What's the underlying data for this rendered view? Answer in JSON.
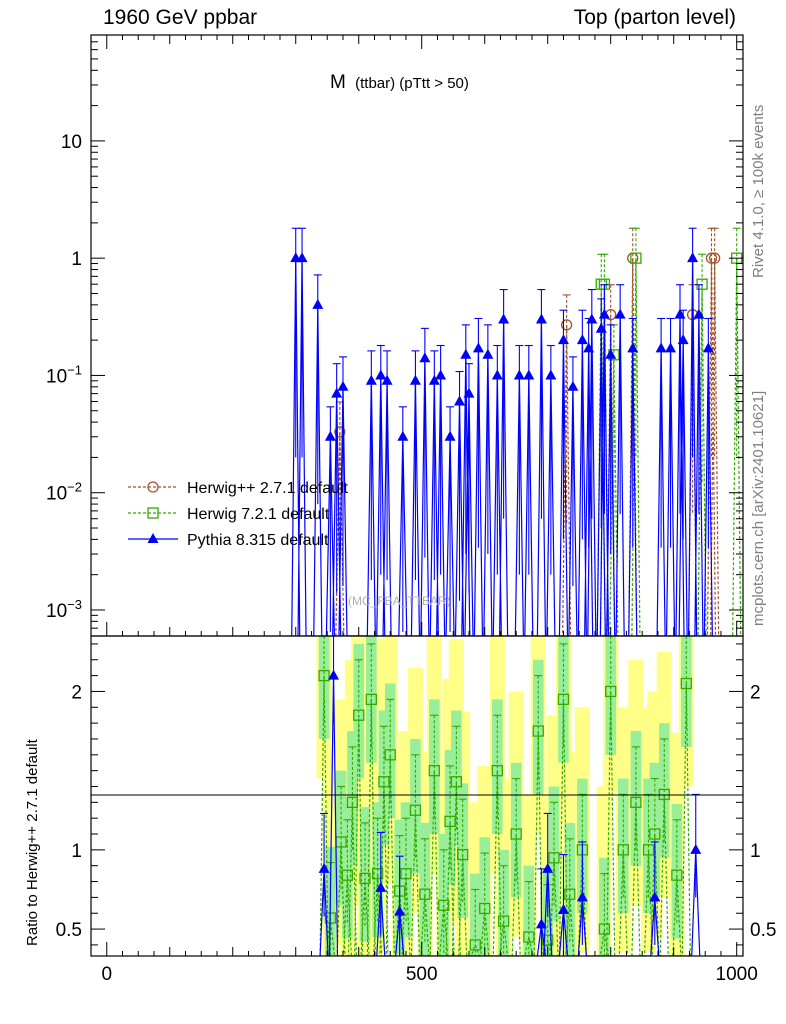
{
  "header": {
    "left": "1960 GeV ppbar",
    "right": "Top (parton level)"
  },
  "side_labels": {
    "rivet": "Rivet 4.1.0, ≥ 100k events",
    "mcplots": "mcplots.cern.ch [arXiv:2401.10621]"
  },
  "chart_data": [
    {
      "type": "line",
      "panel": "main",
      "title_main": "M",
      "title_sub": "(ttbar) (pTtt > 50)",
      "watermark": "(MC_FBA_TTBAR)",
      "xlabel": "",
      "ylabel": "",
      "xlim": [
        -25,
        1010
      ],
      "ylim": [
        0.0006,
        80
      ],
      "yscale": "log",
      "ytick_labels": [
        "10",
        "1",
        "10−1",
        "10−2",
        "10−3"
      ],
      "legend": {
        "placement": "middle-left",
        "entries": [
          "Herwig++ 2.7.1 default",
          "Herwig 7.2.1 default",
          "Pythia 8.315 default"
        ]
      },
      "series": [
        {
          "name": "Herwig++ 2.7.1 default",
          "color": "#a0522d",
          "marker": "open-circle",
          "x": [
            370,
            730,
            800,
            835,
            930,
            960,
            965
          ],
          "y": [
            0.033,
            0.27,
            0.33,
            1.0,
            0.33,
            1.0,
            1.0
          ]
        },
        {
          "name": "Herwig 7.2.1 default",
          "color": "#33aa00",
          "marker": "open-square",
          "x": [
            785,
            790,
            805,
            840,
            945,
            1000
          ],
          "y": [
            0.6,
            0.6,
            0.15,
            1.0,
            0.6,
            1.0
          ]
        },
        {
          "name": "Pythia 8.315 default",
          "color": "#0000ff",
          "marker": "filled-triangle",
          "x": [
            300,
            310,
            335,
            355,
            365,
            375,
            420,
            435,
            445,
            470,
            490,
            505,
            520,
            530,
            545,
            560,
            570,
            575,
            590,
            605,
            620,
            630,
            655,
            670,
            690,
            705,
            725,
            740,
            755,
            765,
            770,
            785,
            790,
            800,
            815,
            835,
            880,
            895,
            910,
            915,
            930,
            940,
            955
          ],
          "y": [
            1.0,
            1.0,
            0.4,
            0.03,
            0.07,
            0.08,
            0.09,
            0.1,
            0.09,
            0.03,
            0.09,
            0.14,
            0.09,
            0.1,
            0.03,
            0.06,
            0.15,
            0.07,
            0.17,
            0.15,
            0.1,
            0.3,
            0.1,
            0.1,
            0.3,
            0.1,
            0.2,
            0.08,
            0.2,
            0.17,
            0.3,
            0.25,
            0.33,
            0.15,
            0.33,
            0.17,
            0.17,
            0.17,
            0.33,
            0.2,
            1.0,
            0.33,
            0.17
          ]
        }
      ]
    },
    {
      "type": "line",
      "panel": "ratio",
      "ylabel": "Ratio to Herwig++ 2.7.1 default",
      "xlim": [
        -25,
        1010
      ],
      "ylim": [
        0.33,
        2.35
      ],
      "yticks": [
        0.5,
        1,
        2
      ],
      "ytick_labels": [
        "0.5",
        "1",
        "2"
      ],
      "xticks": [
        0,
        500,
        1000
      ],
      "xtick_labels": [
        "0",
        "500",
        "1000"
      ],
      "series": [
        {
          "name": "Herwig 7.2.1 default",
          "color": "#33aa00",
          "marker": "open-square",
          "x": [
            345,
            355,
            372,
            382,
            390,
            400,
            410,
            420,
            430,
            440,
            450,
            465,
            475,
            490,
            505,
            520,
            535,
            545,
            555,
            565,
            585,
            600,
            620,
            630,
            650,
            670,
            685,
            700,
            710,
            725,
            735,
            755,
            790,
            800,
            820,
            840,
            860,
            870,
            885,
            905,
            920
          ],
          "y": [
            2.1,
            0.57,
            1.05,
            0.84,
            1.3,
            1.85,
            0.82,
            1.95,
            0.85,
            1.43,
            1.6,
            0.74,
            0.85,
            1.25,
            0.72,
            1.5,
            0.65,
            1.18,
            1.43,
            0.97,
            0.4,
            0.63,
            1.5,
            0.55,
            1.1,
            0.45,
            1.75,
            0.43,
            0.95,
            1.95,
            0.72,
            1.0,
            0.5,
            2.0,
            1.0,
            1.3,
            1.0,
            1.1,
            1.35,
            0.84,
            2.05
          ]
        },
        {
          "name": "Pythia 8.315 default",
          "color": "#0000ff",
          "marker": "filled-triangle",
          "x": [
            345,
            360,
            435,
            465,
            690,
            700,
            725,
            755,
            870,
            935
          ],
          "y": [
            0.88,
            2.1,
            0.76,
            0.61,
            0.53,
            0.88,
            0.62,
            0.7,
            0.7,
            1.0
          ]
        }
      ]
    }
  ]
}
